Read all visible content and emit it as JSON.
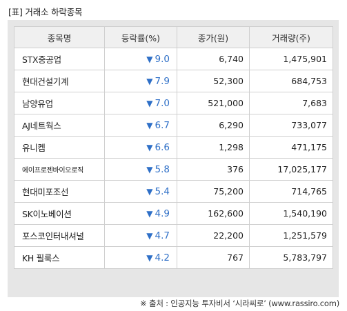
{
  "title": "[표] 거래소 하락종목",
  "columns": [
    "종목명",
    "등락률(%)",
    "종가(원)",
    "거래량(주)"
  ],
  "rows": [
    {
      "name": "STX중공업",
      "change": "9.0",
      "close": "6,740",
      "volume": "1,475,901"
    },
    {
      "name": "현대건설기계",
      "change": "7.9",
      "close": "52,300",
      "volume": "684,753"
    },
    {
      "name": "남양유업",
      "change": "7.0",
      "close": "521,000",
      "volume": "7,683"
    },
    {
      "name": "AJ네트웍스",
      "change": "6.7",
      "close": "6,290",
      "volume": "733,077"
    },
    {
      "name": "유니켐",
      "change": "6.6",
      "close": "1,298",
      "volume": "471,175"
    },
    {
      "name": "에이프로젠바이오로직",
      "change": "5.8",
      "close": "376",
      "volume": "17,025,177"
    },
    {
      "name": "현대미포조선",
      "change": "5.4",
      "close": "75,200",
      "volume": "714,765"
    },
    {
      "name": "SK이노베이션",
      "change": "4.9",
      "close": "162,600",
      "volume": "1,540,190"
    },
    {
      "name": "포스코인터내셔널",
      "change": "4.7",
      "close": "22,200",
      "volume": "1,251,579"
    },
    {
      "name": "KH 필룩스",
      "change": "4.2",
      "close": "767",
      "volume": "5,783,797"
    }
  ],
  "down_arrow": "▼",
  "colors": {
    "down": "#2e6fc7",
    "header_bg": "#f0f0f0",
    "frame_bg": "#e6e6e6"
  },
  "footer": "※ 출처 : 인공지능 투자비서 ‘시라씨로’ (www.rassiro.com)"
}
